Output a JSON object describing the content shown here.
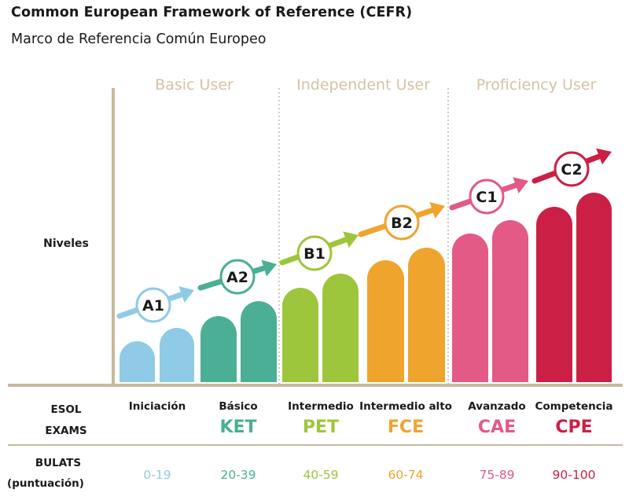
{
  "title": "Common European Framework of Reference (CEFR)",
  "subtitle": "Marco de Referencia Común Europeo",
  "groups": [
    "Basic User",
    "Independent User",
    "Proficiency User"
  ],
  "row_levels_label": "Niveles",
  "row_exams_label": [
    "ESOL",
    "EXAMS"
  ],
  "row_bulats_label": [
    "BULATS",
    "(puntuación)"
  ],
  "colors": {
    "axis": "#c8b99e",
    "group_header": "#d4c2a6",
    "A1": "#8fcbe6",
    "A2": "#4aaf94",
    "B1": "#9dc63c",
    "B2": "#efa42e",
    "C1": "#e25a85",
    "C2": "#cc1f45"
  },
  "levels": [
    {
      "code": "A1",
      "name": "Iniciación",
      "exam": "",
      "bulats": "0-19",
      "group": "Basic User"
    },
    {
      "code": "A2",
      "name": "Básico",
      "exam": "KET",
      "bulats": "20-39",
      "group": "Basic User"
    },
    {
      "code": "B1",
      "name": "Intermedio",
      "exam": "PET",
      "bulats": "40-59",
      "group": "Independent User"
    },
    {
      "code": "B2",
      "name": "Intermedio alto",
      "exam": "FCE",
      "bulats": "60-74",
      "group": "Independent User"
    },
    {
      "code": "C1",
      "name": "Avanzado",
      "exam": "CAE",
      "bulats": "75-89",
      "group": "Proficiency User"
    },
    {
      "code": "C2",
      "name": "Competencia",
      "exam": "CPE",
      "bulats": "90-100",
      "group": "Proficiency User"
    }
  ]
}
